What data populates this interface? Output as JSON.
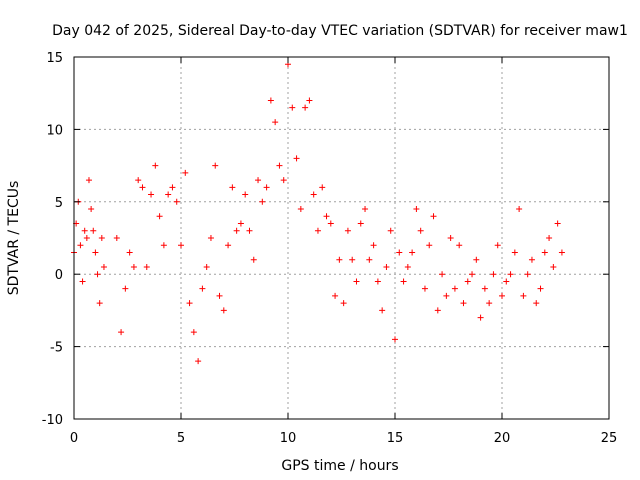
{
  "chart_data": {
    "type": "scatter",
    "title": "Day 042 of 2025, Sidereal Day-to-day VTEC variation (SDTVAR) for receiver maw1",
    "xlabel": "GPS time / hours",
    "ylabel": "SDTVAR / TECUs",
    "xlim": [
      0,
      25
    ],
    "ylim": [
      -10,
      15
    ],
    "xticks": [
      0,
      5,
      10,
      15,
      20,
      25
    ],
    "yticks": [
      -10,
      -5,
      0,
      5,
      10,
      15
    ],
    "xtick_labels": [
      "0",
      "5",
      "10",
      "15",
      "20",
      "25"
    ],
    "ytick_labels": [
      "-10",
      "-5",
      "0",
      "5",
      "10",
      "15"
    ],
    "grid": true,
    "marker": "plus",
    "marker_color": "#ff0000",
    "series": [
      {
        "name": "SDTVAR",
        "x": [
          0.0,
          0.1,
          0.2,
          0.3,
          0.4,
          0.5,
          0.6,
          0.7,
          0.8,
          0.9,
          1.0,
          1.1,
          1.2,
          1.3,
          1.4,
          2.0,
          2.2,
          2.4,
          2.6,
          2.8,
          3.0,
          3.2,
          3.4,
          3.6,
          3.8,
          4.0,
          4.2,
          4.4,
          4.6,
          4.8,
          5.0,
          5.2,
          5.4,
          5.6,
          5.8,
          6.0,
          6.2,
          6.4,
          6.6,
          6.8,
          7.0,
          7.2,
          7.4,
          7.6,
          7.8,
          8.0,
          8.2,
          8.4,
          8.6,
          8.8,
          9.0,
          9.2,
          9.4,
          9.6,
          9.8,
          10.0,
          10.2,
          10.4,
          10.6,
          10.8,
          11.0,
          11.2,
          11.4,
          11.6,
          11.8,
          12.0,
          12.2,
          12.4,
          12.6,
          12.8,
          13.0,
          13.2,
          13.4,
          13.6,
          13.8,
          14.0,
          14.2,
          14.4,
          14.6,
          14.8,
          15.0,
          15.2,
          15.4,
          15.6,
          15.8,
          16.0,
          16.2,
          16.4,
          16.6,
          16.8,
          17.0,
          17.2,
          17.4,
          17.6,
          17.8,
          18.0,
          18.2,
          18.4,
          18.6,
          18.8,
          19.0,
          19.2,
          19.4,
          19.6,
          19.8,
          20.0,
          20.2,
          20.4,
          20.6,
          20.8,
          21.0,
          21.2,
          21.4,
          21.6,
          21.8,
          22.0,
          22.2,
          22.4,
          22.6,
          22.8
        ],
        "y": [
          1.5,
          3.5,
          5.0,
          2.0,
          -0.5,
          3.0,
          2.5,
          6.5,
          4.5,
          3.0,
          1.5,
          0.0,
          -2.0,
          2.5,
          0.5,
          2.5,
          -4.0,
          -1.0,
          1.5,
          0.5,
          6.5,
          6.0,
          0.5,
          5.5,
          7.5,
          4.0,
          2.0,
          5.5,
          6.0,
          5.0,
          2.0,
          7.0,
          -2.0,
          -4.0,
          -6.0,
          -1.0,
          0.5,
          2.5,
          7.5,
          -1.5,
          -2.5,
          2.0,
          6.0,
          3.0,
          3.5,
          5.5,
          3.0,
          1.0,
          6.5,
          5.0,
          6.0,
          12.0,
          10.5,
          7.5,
          6.5,
          14.5,
          11.5,
          8.0,
          4.5,
          11.5,
          12.0,
          5.5,
          3.0,
          6.0,
          4.0,
          3.5,
          -1.5,
          1.0,
          -2.0,
          3.0,
          1.0,
          -0.5,
          3.5,
          4.5,
          1.0,
          2.0,
          -0.5,
          -2.5,
          0.5,
          3.0,
          -4.5,
          1.5,
          -0.5,
          0.5,
          1.5,
          4.5,
          3.0,
          -1.0,
          2.0,
          4.0,
          -2.5,
          0.0,
          -1.5,
          2.5,
          -1.0,
          2.0,
          -2.0,
          -0.5,
          0.0,
          1.0,
          -3.0,
          -1.0,
          -2.0,
          0.0,
          2.0,
          -1.5,
          -0.5,
          0.0,
          1.5,
          4.5,
          -1.5,
          0.0,
          1.0,
          -2.0,
          -1.0,
          1.5,
          2.5,
          0.5,
          3.5,
          1.5
        ]
      }
    ]
  }
}
